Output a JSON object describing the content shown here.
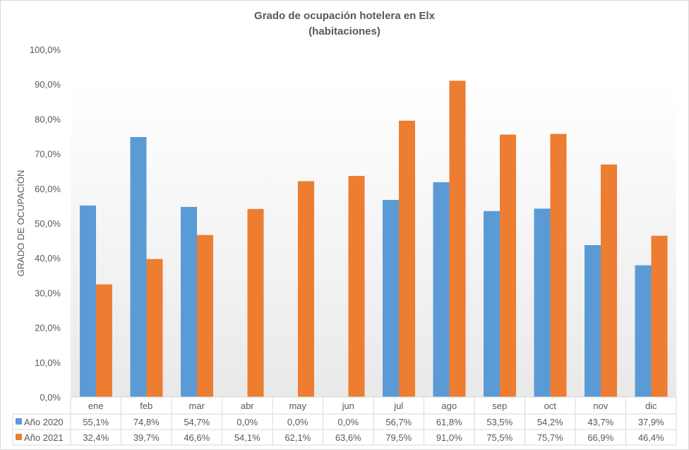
{
  "chart_data": {
    "type": "bar",
    "title": "Grado de ocupación hotelera en Elx",
    "subtitle": "(habitaciones)",
    "xlabel": "",
    "ylabel": "GRADO DE OCUPACIÓN",
    "ylim": [
      0,
      100
    ],
    "yticks": [
      "0,0%",
      "10,0%",
      "20,0%",
      "30,0%",
      "40,0%",
      "50,0%",
      "60,0%",
      "70,0%",
      "80,0%",
      "90,0%",
      "100,0%"
    ],
    "grid": false,
    "legend": "data-table-bottom",
    "categories": [
      "ene",
      "feb",
      "mar",
      "abr",
      "may",
      "jun",
      "jul",
      "ago",
      "sep",
      "oct",
      "nov",
      "dic"
    ],
    "series": [
      {
        "name": "Año 2020",
        "color": "#5b9bd5",
        "values": [
          55.1,
          74.8,
          54.7,
          0.0,
          0.0,
          0.0,
          56.7,
          61.8,
          53.5,
          54.2,
          43.7,
          37.9
        ],
        "labels": [
          "55,1%",
          "74,8%",
          "54,7%",
          "0,0%",
          "0,0%",
          "0,0%",
          "56,7%",
          "61,8%",
          "53,5%",
          "54,2%",
          "43,7%",
          "37,9%"
        ]
      },
      {
        "name": "Año 2021",
        "color": "#ed7d31",
        "values": [
          32.4,
          39.7,
          46.6,
          54.1,
          62.1,
          63.6,
          79.5,
          91.0,
          75.5,
          75.7,
          66.9,
          46.4
        ],
        "labels": [
          "32,4%",
          "39,7%",
          "46,6%",
          "54,1%",
          "62,1%",
          "63,6%",
          "79,5%",
          "91,0%",
          "75,5%",
          "75,7%",
          "66,9%",
          "46,4%"
        ]
      }
    ]
  }
}
